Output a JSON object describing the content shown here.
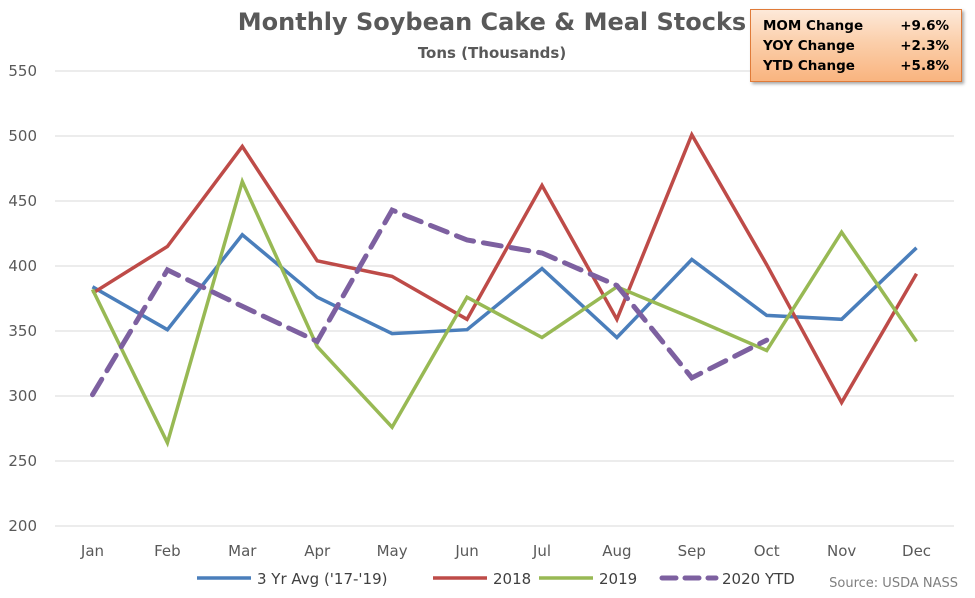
{
  "stats": [
    {
      "label": "MOM Change",
      "value": "+9.6%"
    },
    {
      "label": "YOY Change",
      "value": "+2.3%"
    },
    {
      "label": "YTD Change",
      "value": "+5.8%"
    }
  ],
  "source": "Source: USDA NASS",
  "colors": {
    "avg": "#4a7ebb",
    "y2018": "#be4b48",
    "y2019": "#98b954",
    "y2020": "#7d60a0",
    "grid": "#d9d9d9"
  },
  "chart_data": {
    "type": "line",
    "title": "Monthly Soybean Cake & Meal Stocks",
    "subtitle": "Tons (Thousands)",
    "categories": [
      "Jan",
      "Feb",
      "Mar",
      "Apr",
      "May",
      "Jun",
      "Jul",
      "Aug",
      "Sep",
      "Oct",
      "Nov",
      "Dec"
    ],
    "ylim": [
      200,
      550
    ],
    "yticks": [
      200,
      250,
      300,
      350,
      400,
      450,
      500,
      550
    ],
    "grid": true,
    "legend_position": "bottom",
    "series": [
      {
        "name": "3 Yr Avg ('17-'19)",
        "color_key": "avg",
        "dashed": false,
        "values": [
          384,
          351,
          424,
          376,
          348,
          351,
          398,
          345,
          405,
          362,
          359,
          414
        ]
      },
      {
        "name": "2018",
        "color_key": "y2018",
        "dashed": false,
        "values": [
          379,
          415,
          492,
          404,
          392,
          359,
          462,
          359,
          501,
          401,
          295,
          394
        ]
      },
      {
        "name": "2019",
        "color_key": "y2019",
        "dashed": false,
        "values": [
          382,
          264,
          465,
          338,
          276,
          376,
          345,
          384,
          360,
          335,
          426,
          342
        ]
      },
      {
        "name": "2020 YTD",
        "color_key": "y2020",
        "dashed": true,
        "values": [
          301,
          397,
          369,
          342,
          443,
          420,
          410,
          385,
          314,
          343,
          null,
          null
        ]
      }
    ]
  }
}
